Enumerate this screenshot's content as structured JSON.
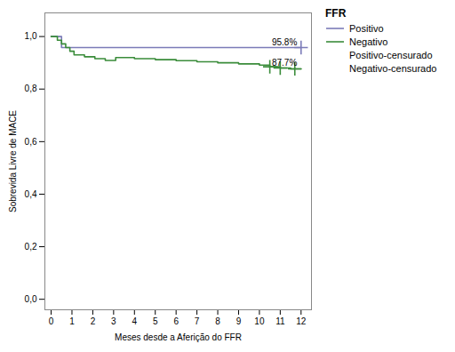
{
  "chart_data": {
    "type": "line",
    "title": "",
    "xlabel": "Meses desde a Aferição do FFR",
    "ylabel": "Sobrevida Livre de MACE",
    "xlim": [
      -0.3,
      12.5
    ],
    "ylim": [
      -0.04,
      1.09
    ],
    "xticks": [
      0,
      1,
      2,
      3,
      4,
      5,
      6,
      7,
      8,
      9,
      10,
      11,
      12
    ],
    "yticks": [
      {
        "value": 0.0,
        "label": "0,0"
      },
      {
        "value": 0.2,
        "label": "0,2"
      },
      {
        "value": 0.4,
        "label": "0,4"
      },
      {
        "value": 0.6,
        "label": "0,6"
      },
      {
        "value": 0.8,
        "label": "0,8"
      },
      {
        "value": 1.0,
        "label": "1,0"
      }
    ],
    "grid": false,
    "legend": "right",
    "legend_title": "FFR",
    "series": [
      {
        "name": "Positivo",
        "type": "step",
        "color": "#7b7bb8",
        "x": [
          0.0,
          0.5,
          12.0
        ],
        "values": [
          1.0,
          0.958,
          0.958
        ]
      },
      {
        "name": "Negativo",
        "type": "step",
        "color": "#3a8c3a",
        "x": [
          0.0,
          0.3,
          0.5,
          0.7,
          0.9,
          1.1,
          1.6,
          2.1,
          2.6,
          3.1,
          4.0,
          5.0,
          6.0,
          7.0,
          8.0,
          9.0,
          10.0,
          10.5,
          11.0,
          11.5,
          12.0
        ],
        "values": [
          1.0,
          0.986,
          0.972,
          0.958,
          0.944,
          0.93,
          0.923,
          0.916,
          0.909,
          0.92,
          0.916,
          0.912,
          0.908,
          0.904,
          0.9,
          0.896,
          0.891,
          0.885,
          0.88,
          0.877,
          0.877
        ]
      },
      {
        "name": "Positivo-censurado",
        "type": "scatter",
        "marker": "+",
        "color": "#7b7bb8",
        "x": [
          12.0
        ],
        "values": [
          0.958
        ]
      },
      {
        "name": "Negativo-censurado",
        "type": "scatter",
        "marker": "+",
        "color": "#3a8c3a",
        "x": [
          10.5,
          11.0,
          11.7
        ],
        "values": [
          0.885,
          0.88,
          0.877
        ]
      }
    ],
    "annotations": [
      {
        "text": "95.8%",
        "x": 10.6,
        "y": 0.965
      },
      {
        "text": "87.7%",
        "x": 10.6,
        "y": 0.89
      }
    ]
  }
}
